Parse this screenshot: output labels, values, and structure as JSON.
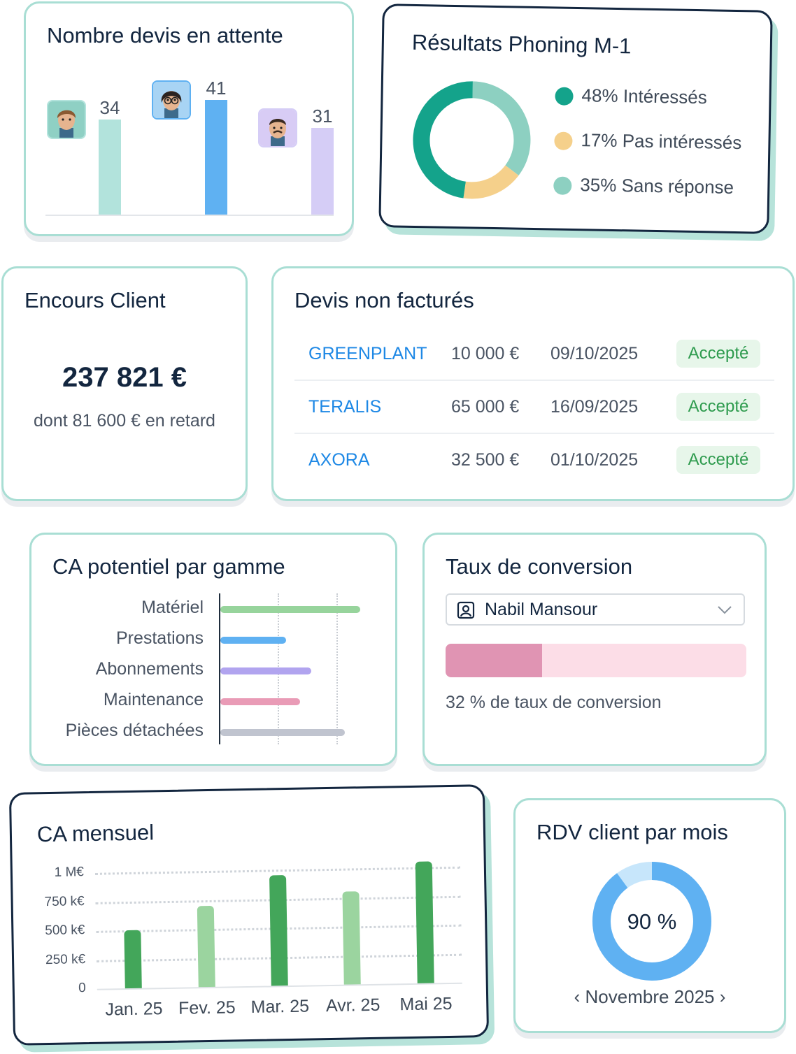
{
  "devis_attente": {
    "title": "Nombre devis en attente",
    "bars": [
      {
        "value": 34,
        "label": "34",
        "color": "#b2e3dc",
        "avatar": "avatar-boy"
      },
      {
        "value": 41,
        "label": "41",
        "color": "#5fb1f2",
        "avatar": "avatar-girl-glasses"
      },
      {
        "value": 31,
        "label": "31",
        "color": "#d5cdf6",
        "avatar": "avatar-man-mustache"
      }
    ]
  },
  "phoning": {
    "title": "Résultats Phoning M-1",
    "items": [
      {
        "label": "48% Intéressés",
        "value": 48,
        "color": "#14a38b"
      },
      {
        "label": "17% Pas intéressés",
        "value": 17,
        "color": "#f5d08b"
      },
      {
        "label": "35% Sans réponse",
        "value": 35,
        "color": "#8dd0c1"
      }
    ]
  },
  "encours": {
    "title": "Encours Client",
    "amount": "237 821 €",
    "sub": "dont 81 600 € en retard"
  },
  "devis_non_factures": {
    "title": "Devis non facturés",
    "rows": [
      {
        "client": "GREENPLANT",
        "amount": "10 000 €",
        "date": "09/10/2025",
        "status": "Accepté"
      },
      {
        "client": "TERALIS",
        "amount": "65 000 €",
        "date": "16/09/2025",
        "status": "Accepté"
      },
      {
        "client": "AXORA",
        "amount": "32 500 €",
        "date": "01/10/2025",
        "status": "Accepté"
      }
    ]
  },
  "ca_gamme": {
    "title": "CA potentiel par gamme",
    "chart_data": {
      "type": "bar",
      "orientation": "horizontal",
      "categories": [
        "Matériel",
        "Prestations",
        "Abonnements",
        "Maintenance",
        "Pièces détachées"
      ],
      "values": [
        100,
        47,
        65,
        57,
        89
      ],
      "colors": [
        "#97d49c",
        "#5fb1f2",
        "#b1a4ef",
        "#e99bb6",
        "#c0c4cf"
      ],
      "grid": true
    }
  },
  "conversion": {
    "title": "Taux de conversion",
    "select_value": "Nabil Mansour",
    "rate": 32,
    "text": "32 % de taux de conversion",
    "colors": {
      "fill": "#e094b3",
      "track": "#fcdde7"
    }
  },
  "ca_mensuel": {
    "title": "CA mensuel",
    "chart_data": {
      "type": "bar",
      "categories": [
        "Jan. 25",
        "Fev. 25",
        "Mar. 25",
        "Avr. 25",
        "Mai 25"
      ],
      "values": [
        500,
        700,
        950,
        800,
        1050
      ],
      "y_ticks": [
        "0",
        "250 k€",
        "500 k€",
        "750 k€",
        "1 M€"
      ],
      "y_tick_values": [
        0,
        250,
        500,
        750,
        1000
      ],
      "ylim": [
        0,
        1000
      ],
      "colors": [
        "#43a65a",
        "#9bd49f",
        "#43a65a",
        "#9bd49f",
        "#43a65a"
      ],
      "grid": true
    }
  },
  "rdv": {
    "title": "RDV client par mois",
    "value": 90,
    "label": "90 %",
    "month": "Novembre 2025",
    "colors": {
      "fill": "#5fb1f2",
      "rest": "#c7e6fb"
    }
  }
}
